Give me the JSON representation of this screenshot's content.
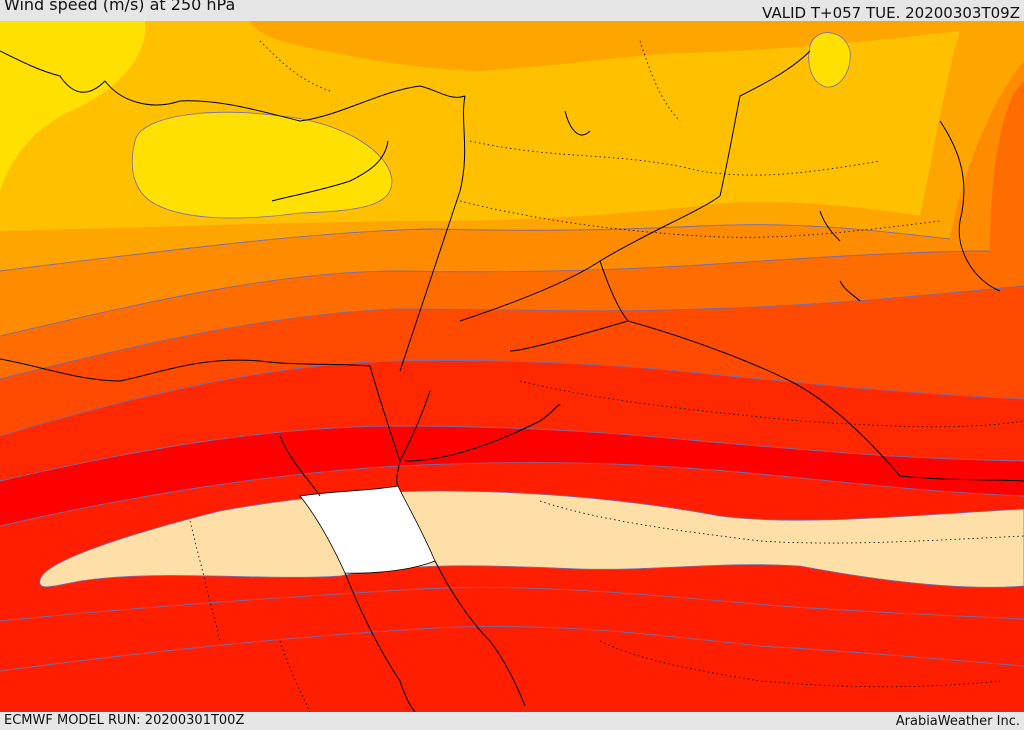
{
  "header": {
    "title": "Wind speed (m/s) at 250 hPa",
    "valid": "VALID T+057 TUE. 20200303T09Z"
  },
  "footer": {
    "model_run": "ECMWF MODEL RUN: 20200301T00Z",
    "provider": "ArabiaWeather Inc."
  },
  "colors": {
    "band_yellow": "#ffe000",
    "band_gold": "#ffc000",
    "band_orange_light": "#ffa500",
    "band_orange": "#ff8c00",
    "band_orange_dark": "#ff6c00",
    "band_red_orange": "#ff4a00",
    "band_red_light": "#ff2800",
    "band_red": "#ff0000",
    "jet_core": "#ffdfa8",
    "jet_max": "#ffffff",
    "contour": "#7a6aa8",
    "coastline": "#000000"
  }
}
